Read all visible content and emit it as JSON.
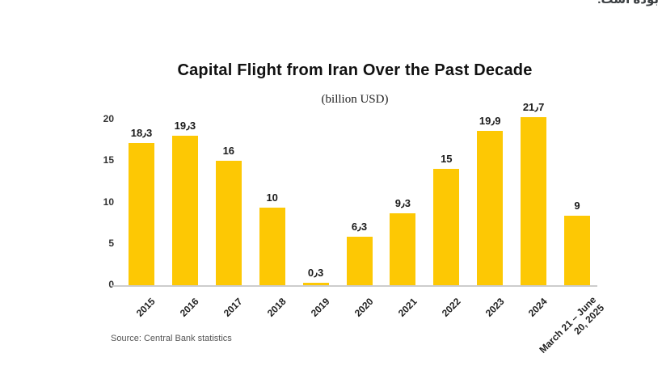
{
  "page": {
    "clipped_text_top_right": "بوده است."
  },
  "chart_data": {
    "type": "bar",
    "title": "Capital Flight from Iran Over the Past Decade",
    "subtitle": "(billion USD)",
    "source": "Source: Central Bank statistics",
    "categories": [
      "2015",
      "2016",
      "2017",
      "2018",
      "2019",
      "2020",
      "2021",
      "2022",
      "2023",
      "2024",
      "March 21 – June 20, 2025"
    ],
    "values": [
      18.3,
      19.3,
      16,
      10,
      0.3,
      6.3,
      9.3,
      15,
      19.9,
      21.7,
      9
    ],
    "value_labels": [
      "18٫3",
      "19٫3",
      "16",
      "10",
      "0٫3",
      "6٫3",
      "9٫3",
      "15",
      "19٫9",
      "21٫7",
      "9"
    ],
    "last_category_lines": [
      "March 21 – June",
      "20, 2025"
    ],
    "xlabel": "",
    "ylabel": "",
    "y_ticks": [
      0,
      5,
      10,
      15,
      20
    ],
    "ylim": [
      0,
      22
    ],
    "grid": false,
    "legend": "none",
    "bar_color": "#FDC804",
    "axis_line_color": "#CCCCCC",
    "value_label_color": "#1a1a1a",
    "tick_label_color": "#333333",
    "source_color": "#555555"
  }
}
